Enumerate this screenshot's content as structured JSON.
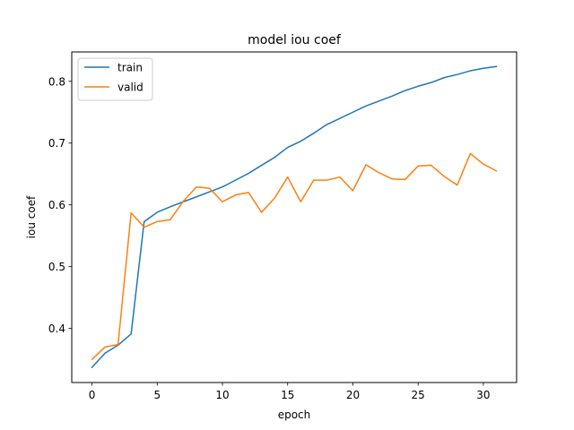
{
  "chart_data": {
    "type": "line",
    "title": "model iou coef",
    "xlabel": "epoch",
    "ylabel": "iou coef",
    "xlim": [
      -1.55,
      32.55
    ],
    "ylim": [
      0.3125,
      0.8475
    ],
    "xticks": [
      0,
      5,
      10,
      15,
      20,
      25,
      30
    ],
    "yticks": [
      0.4,
      0.5,
      0.6,
      0.7,
      0.8
    ],
    "ytick_labels": [
      "0.4",
      "0.5",
      "0.6",
      "0.7",
      "0.8"
    ],
    "x": [
      0,
      1,
      2,
      3,
      4,
      5,
      6,
      7,
      8,
      9,
      10,
      11,
      12,
      13,
      14,
      15,
      16,
      17,
      18,
      19,
      20,
      21,
      22,
      23,
      24,
      25,
      26,
      27,
      28,
      29,
      30,
      31
    ],
    "series": [
      {
        "name": "train",
        "color": "#1f77b4",
        "values": [
          0.337,
          0.36,
          0.373,
          0.391,
          0.573,
          0.588,
          0.597,
          0.605,
          0.613,
          0.621,
          0.629,
          0.64,
          0.651,
          0.664,
          0.677,
          0.693,
          0.703,
          0.716,
          0.73,
          0.74,
          0.75,
          0.76,
          0.768,
          0.776,
          0.785,
          0.792,
          0.798,
          0.806,
          0.811,
          0.817,
          0.821,
          0.824
        ]
      },
      {
        "name": "valid",
        "color": "#ff7f0e",
        "values": [
          0.35,
          0.37,
          0.374,
          0.587,
          0.564,
          0.573,
          0.576,
          0.606,
          0.629,
          0.627,
          0.605,
          0.616,
          0.62,
          0.588,
          0.611,
          0.645,
          0.605,
          0.64,
          0.64,
          0.645,
          0.623,
          0.665,
          0.652,
          0.642,
          0.641,
          0.663,
          0.664,
          0.646,
          0.632,
          0.683,
          0.666,
          0.655
        ]
      }
    ],
    "legend_position": "upper left",
    "grid": false
  }
}
